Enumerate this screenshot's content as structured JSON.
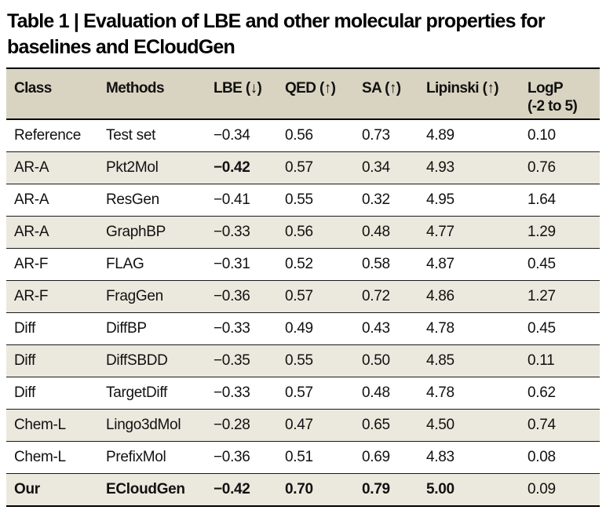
{
  "title": "Table 1 | Evaluation of LBE and other molecular properties for baselines and ECloudGen",
  "table": {
    "columns": [
      {
        "key": "class",
        "label": "Class"
      },
      {
        "key": "method",
        "label": "Methods"
      },
      {
        "key": "lbe",
        "label": "LBE (↓)"
      },
      {
        "key": "qed",
        "label": "QED (↑)"
      },
      {
        "key": "sa",
        "label": "SA (↑)"
      },
      {
        "key": "lipinski",
        "label": "Lipinski (↑)"
      },
      {
        "key": "logp",
        "label": "LogP",
        "sublabel": "(-2 to 5)"
      }
    ],
    "rows": [
      {
        "class": "Reference",
        "method": "Test set",
        "lbe": "−0.34",
        "qed": "0.56",
        "sa": "0.73",
        "lipinski": "4.89",
        "logp": "0.10",
        "bold": []
      },
      {
        "class": "AR-A",
        "method": "Pkt2Mol",
        "lbe": "−0.42",
        "qed": "0.57",
        "sa": "0.34",
        "lipinski": "4.93",
        "logp": "0.76",
        "bold": [
          "lbe"
        ]
      },
      {
        "class": "AR-A",
        "method": "ResGen",
        "lbe": "−0.41",
        "qed": "0.55",
        "sa": "0.32",
        "lipinski": "4.95",
        "logp": "1.64",
        "bold": []
      },
      {
        "class": "AR-A",
        "method": "GraphBP",
        "lbe": "−0.33",
        "qed": "0.56",
        "sa": "0.48",
        "lipinski": "4.77",
        "logp": "1.29",
        "bold": []
      },
      {
        "class": "AR-F",
        "method": "FLAG",
        "lbe": "−0.31",
        "qed": "0.52",
        "sa": "0.58",
        "lipinski": "4.87",
        "logp": "0.45",
        "bold": []
      },
      {
        "class": "AR-F",
        "method": "FragGen",
        "lbe": "−0.36",
        "qed": "0.57",
        "sa": "0.72",
        "lipinski": "4.86",
        "logp": "1.27",
        "bold": []
      },
      {
        "class": "Diff",
        "method": "DiffBP",
        "lbe": "−0.33",
        "qed": "0.49",
        "sa": "0.43",
        "lipinski": "4.78",
        "logp": "0.45",
        "bold": []
      },
      {
        "class": "Diff",
        "method": "DiffSBDD",
        "lbe": "−0.35",
        "qed": "0.55",
        "sa": "0.50",
        "lipinski": "4.85",
        "logp": "0.11",
        "bold": []
      },
      {
        "class": "Diff",
        "method": "TargetDiff",
        "lbe": "−0.33",
        "qed": "0.57",
        "sa": "0.48",
        "lipinski": "4.78",
        "logp": "0.62",
        "bold": []
      },
      {
        "class": "Chem-L",
        "method": "Lingo3dMol",
        "lbe": "−0.28",
        "qed": "0.47",
        "sa": "0.65",
        "lipinski": "4.50",
        "logp": "0.74",
        "bold": []
      },
      {
        "class": "Chem-L",
        "method": "PrefixMol",
        "lbe": "−0.36",
        "qed": "0.51",
        "sa": "0.69",
        "lipinski": "4.83",
        "logp": "0.08",
        "bold": []
      },
      {
        "class": "Our",
        "method": "ECloudGen",
        "lbe": "−0.42",
        "qed": "0.70",
        "sa": "0.79",
        "lipinski": "5.00",
        "logp": "0.09",
        "bold": [
          "class",
          "method",
          "lbe",
          "qed",
          "sa",
          "lipinski"
        ]
      }
    ]
  },
  "colors": {
    "header_bg": "#d9d4c1",
    "row_shade_bg": "#ebe8dd",
    "rule": "#000000",
    "text": "#111111"
  }
}
